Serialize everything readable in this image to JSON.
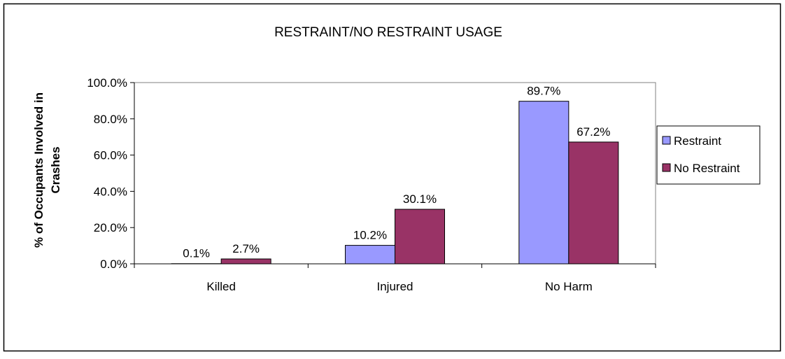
{
  "chart_data": {
    "type": "bar",
    "title": "RESTRAINT/NO RESTRAINT USAGE",
    "xlabel": "",
    "ylabel_lines": [
      "% of Occupants Involved in",
      "Crashes"
    ],
    "categories": [
      "Killed",
      "Injured",
      "No Harm"
    ],
    "series": [
      {
        "name": "Restraint",
        "values": [
          0.1,
          10.2,
          89.7
        ],
        "labels": [
          "0.1%",
          "10.2%",
          "89.7%"
        ],
        "color": "#9999ff"
      },
      {
        "name": "No Restraint",
        "values": [
          2.7,
          30.1,
          67.2
        ],
        "labels": [
          "2.7%",
          "30.1%",
          "67.2%"
        ],
        "color": "#993366"
      }
    ],
    "ylim": [
      0,
      100
    ],
    "yticks": [
      0,
      20,
      40,
      60,
      80,
      100
    ],
    "ytick_labels": [
      "0.0%",
      "20.0%",
      "40.0%",
      "60.0%",
      "80.0%",
      "100.0%"
    ],
    "grid": false,
    "legend_position": "right"
  }
}
